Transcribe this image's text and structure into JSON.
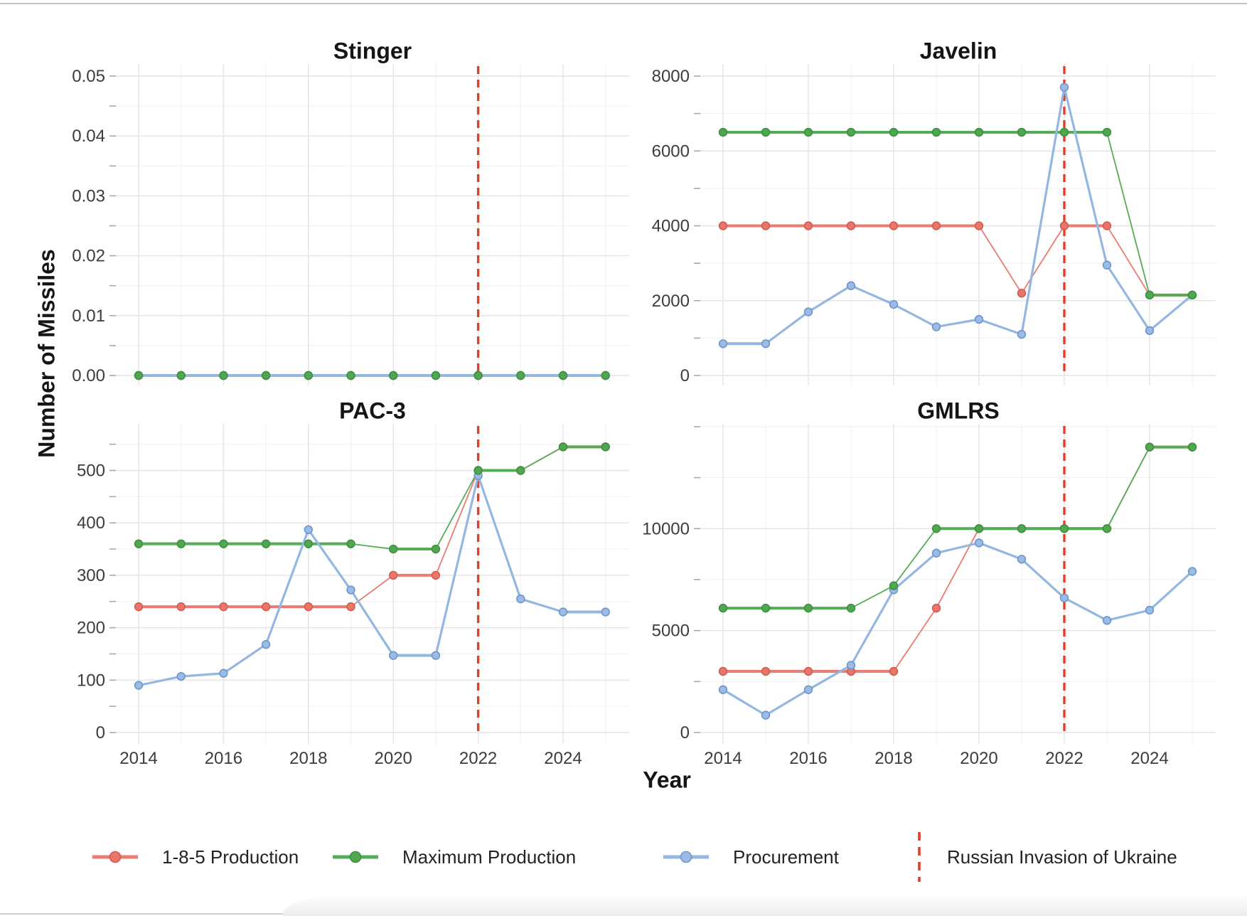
{
  "page": {
    "y_axis_label": "Number of Missiles",
    "x_axis_label": "Year",
    "x_tick_labels": [
      "2014",
      "2016",
      "2018",
      "2020",
      "2022",
      "2024"
    ]
  },
  "colors": {
    "series": {
      "red": {
        "line": "#ec7b71",
        "point": "#ea766b",
        "point_stroke": "#d05b51"
      },
      "green": {
        "line": "#55ac56",
        "point": "#4fa850",
        "point_stroke": "#3e8f41"
      },
      "blue": {
        "line": "#94b7e2",
        "point": "#9bbbe5",
        "point_stroke": "#6e96cb"
      }
    },
    "vline": "#e53e28",
    "grid_major": "#e4e4e4",
    "grid_minor": "#f0f0f0",
    "tick_mark": "#a8a8a8",
    "tick_label": "#3c3c3c"
  },
  "legend": {
    "items": [
      {
        "label": "1-8-5 Production",
        "marker": "line-dot",
        "color": "red"
      },
      {
        "label": "Maximum Production",
        "marker": "line-dot",
        "color": "green"
      },
      {
        "label": "Procurement",
        "marker": "line-dot",
        "color": "blue"
      },
      {
        "label": "Russian Invasion of Ukraine",
        "marker": "dashed-vline",
        "color": "vline"
      }
    ]
  },
  "chart_data": [
    {
      "key": "stinger",
      "type": "line",
      "title": "Stinger",
      "x": [
        2014,
        2015,
        2016,
        2017,
        2018,
        2019,
        2020,
        2021,
        2022,
        2023,
        2024,
        2025
      ],
      "vline_x": 2022,
      "ylim": [
        0,
        0.052
      ],
      "yticks": [
        0,
        0.01,
        0.02,
        0.03,
        0.04,
        0.05
      ],
      "ytick_labels": [
        "0.00",
        "0.01",
        "0.02",
        "0.03",
        "0.04",
        "0.05"
      ],
      "yticks_minor": [
        0.005,
        0.015,
        0.025,
        0.035,
        0.045
      ],
      "show_x_labels": false,
      "series": [
        {
          "name": "1-8-5 Production",
          "color": "red",
          "values": [
            0,
            0,
            0,
            0,
            0,
            0,
            0,
            0,
            0,
            0,
            0,
            0
          ]
        },
        {
          "name": "Maximum Production",
          "color": "green",
          "values": [
            0,
            0,
            0,
            0,
            0,
            0,
            0,
            0,
            0,
            0,
            0,
            0
          ]
        },
        {
          "name": "Procurement",
          "color": "blue",
          "values": [
            0,
            0,
            0,
            0,
            0,
            0,
            0,
            0,
            0,
            0,
            0,
            0
          ]
        }
      ]
    },
    {
      "key": "javelin",
      "type": "line",
      "title": "Javelin",
      "x": [
        2014,
        2015,
        2016,
        2017,
        2018,
        2019,
        2020,
        2021,
        2022,
        2023,
        2024,
        2025
      ],
      "vline_x": 2022,
      "ylim": [
        0,
        8300
      ],
      "yticks": [
        0,
        2000,
        4000,
        6000,
        8000
      ],
      "ytick_labels": [
        "0",
        "2000",
        "4000",
        "6000",
        "8000"
      ],
      "yticks_minor": [
        1000,
        3000,
        5000,
        7000
      ],
      "show_x_labels": false,
      "series": [
        {
          "name": "1-8-5 Production",
          "color": "red",
          "values": [
            4000,
            4000,
            4000,
            4000,
            4000,
            4000,
            4000,
            2200,
            4000,
            4000,
            2150,
            2150
          ]
        },
        {
          "name": "Maximum Production",
          "color": "green",
          "values": [
            6500,
            6500,
            6500,
            6500,
            6500,
            6500,
            6500,
            6500,
            6500,
            6500,
            2150,
            2150
          ]
        },
        {
          "name": "Procurement",
          "color": "blue",
          "values": [
            850,
            850,
            1700,
            2400,
            1900,
            1300,
            1500,
            1100,
            7700,
            2950,
            1200,
            2150
          ]
        }
      ]
    },
    {
      "key": "pac3",
      "type": "line",
      "title": "PAC-3",
      "x": [
        2014,
        2015,
        2016,
        2017,
        2018,
        2019,
        2020,
        2021,
        2022,
        2023,
        2024,
        2025
      ],
      "vline_x": 2022,
      "ylim": [
        0,
        590
      ],
      "yticks": [
        0,
        100,
        200,
        300,
        400,
        500
      ],
      "ytick_labels": [
        "0",
        "100",
        "200",
        "300",
        "400",
        "500"
      ],
      "yticks_minor": [
        50,
        150,
        250,
        350,
        450,
        550
      ],
      "show_x_labels": true,
      "series": [
        {
          "name": "1-8-5 Production",
          "color": "red",
          "values": [
            240,
            240,
            240,
            240,
            240,
            240,
            300,
            300,
            500,
            500,
            545,
            545
          ]
        },
        {
          "name": "Maximum Production",
          "color": "green",
          "values": [
            360,
            360,
            360,
            360,
            360,
            360,
            350,
            350,
            500,
            500,
            545,
            545
          ]
        },
        {
          "name": "Procurement",
          "color": "blue",
          "values": [
            90,
            107,
            113,
            168,
            387,
            272,
            147,
            147,
            490,
            255,
            230,
            230
          ]
        }
      ]
    },
    {
      "key": "gmlrs",
      "type": "line",
      "title": "GMLRS",
      "x": [
        2014,
        2015,
        2016,
        2017,
        2018,
        2019,
        2020,
        2021,
        2022,
        2023,
        2024,
        2025
      ],
      "vline_x": 2022,
      "ylim": [
        0,
        15100
      ],
      "yticks": [
        0,
        5000,
        10000
      ],
      "ytick_labels": [
        "0",
        "5000",
        "10000"
      ],
      "yticks_minor": [
        2500,
        7500,
        12500,
        15000
      ],
      "show_x_labels": true,
      "series": [
        {
          "name": "1-8-5 Production",
          "color": "red",
          "values": [
            3000,
            3000,
            3000,
            3000,
            3000,
            6100,
            10000,
            10000,
            10000,
            10000,
            14000,
            14000
          ]
        },
        {
          "name": "Maximum Production",
          "color": "green",
          "values": [
            6100,
            6100,
            6100,
            6100,
            7200,
            10000,
            10000,
            10000,
            10000,
            10000,
            14000,
            14000
          ]
        },
        {
          "name": "Procurement",
          "color": "blue",
          "values": [
            2100,
            850,
            2100,
            3300,
            7000,
            8800,
            9300,
            8500,
            6600,
            5500,
            6000,
            7900
          ]
        }
      ]
    }
  ]
}
